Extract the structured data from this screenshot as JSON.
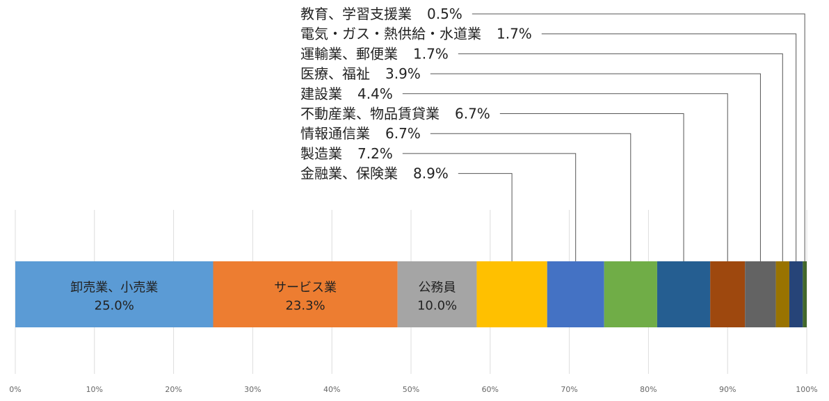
{
  "chart_data": {
    "type": "bar",
    "orientation": "horizontal-stacked-100",
    "xlim": [
      0,
      100
    ],
    "grid": true,
    "ticks": [
      {
        "value": 0,
        "label": "0%"
      },
      {
        "value": 10,
        "label": "10%"
      },
      {
        "value": 20,
        "label": "20%"
      },
      {
        "value": 30,
        "label": "30%"
      },
      {
        "value": 40,
        "label": "40%"
      },
      {
        "value": 50,
        "label": "50%"
      },
      {
        "value": 60,
        "label": "60%"
      },
      {
        "value": 70,
        "label": "70%"
      },
      {
        "value": 80,
        "label": "80%"
      },
      {
        "value": 90,
        "label": "90%"
      },
      {
        "value": 100,
        "label": "100%"
      }
    ],
    "segments": [
      {
        "name": "卸売業、小売業",
        "value": 25.0,
        "label": "25.0%",
        "color": "#5B9BD5",
        "label_position": "inside"
      },
      {
        "name": "サービス業",
        "value": 23.3,
        "label": "23.3%",
        "color": "#ED7D31",
        "label_position": "inside"
      },
      {
        "name": "公務員",
        "value": 10.0,
        "label": "10.0%",
        "color": "#A5A5A5",
        "label_position": "inside"
      },
      {
        "name": "金融業、保険業",
        "value": 8.9,
        "label": "8.9%",
        "color": "#FFC000",
        "label_position": "callout"
      },
      {
        "name": "製造業",
        "value": 7.2,
        "label": "7.2%",
        "color": "#4472C4",
        "label_position": "callout"
      },
      {
        "name": "情報通信業",
        "value": 6.7,
        "label": "6.7%",
        "color": "#70AD47",
        "label_position": "callout"
      },
      {
        "name": "不動産業、物品賃貸業",
        "value": 6.7,
        "label": "6.7%",
        "color": "#255E91",
        "label_position": "callout"
      },
      {
        "name": "建設業",
        "value": 4.4,
        "label": "4.4%",
        "color": "#9E480E",
        "label_position": "callout"
      },
      {
        "name": "医療、福祉",
        "value": 3.9,
        "label": "3.9%",
        "color": "#636363",
        "label_position": "callout"
      },
      {
        "name": "運輸業、郵便業",
        "value": 1.7,
        "label": "1.7%",
        "color": "#997300",
        "label_position": "callout"
      },
      {
        "name": "電気・ガス・熱供給・水道業",
        "value": 1.7,
        "label": "1.7%",
        "color": "#264478",
        "label_position": "callout"
      },
      {
        "name": "教育、学習支援業",
        "value": 0.5,
        "label": "0.5%",
        "color": "#43682B",
        "label_position": "callout"
      }
    ]
  }
}
